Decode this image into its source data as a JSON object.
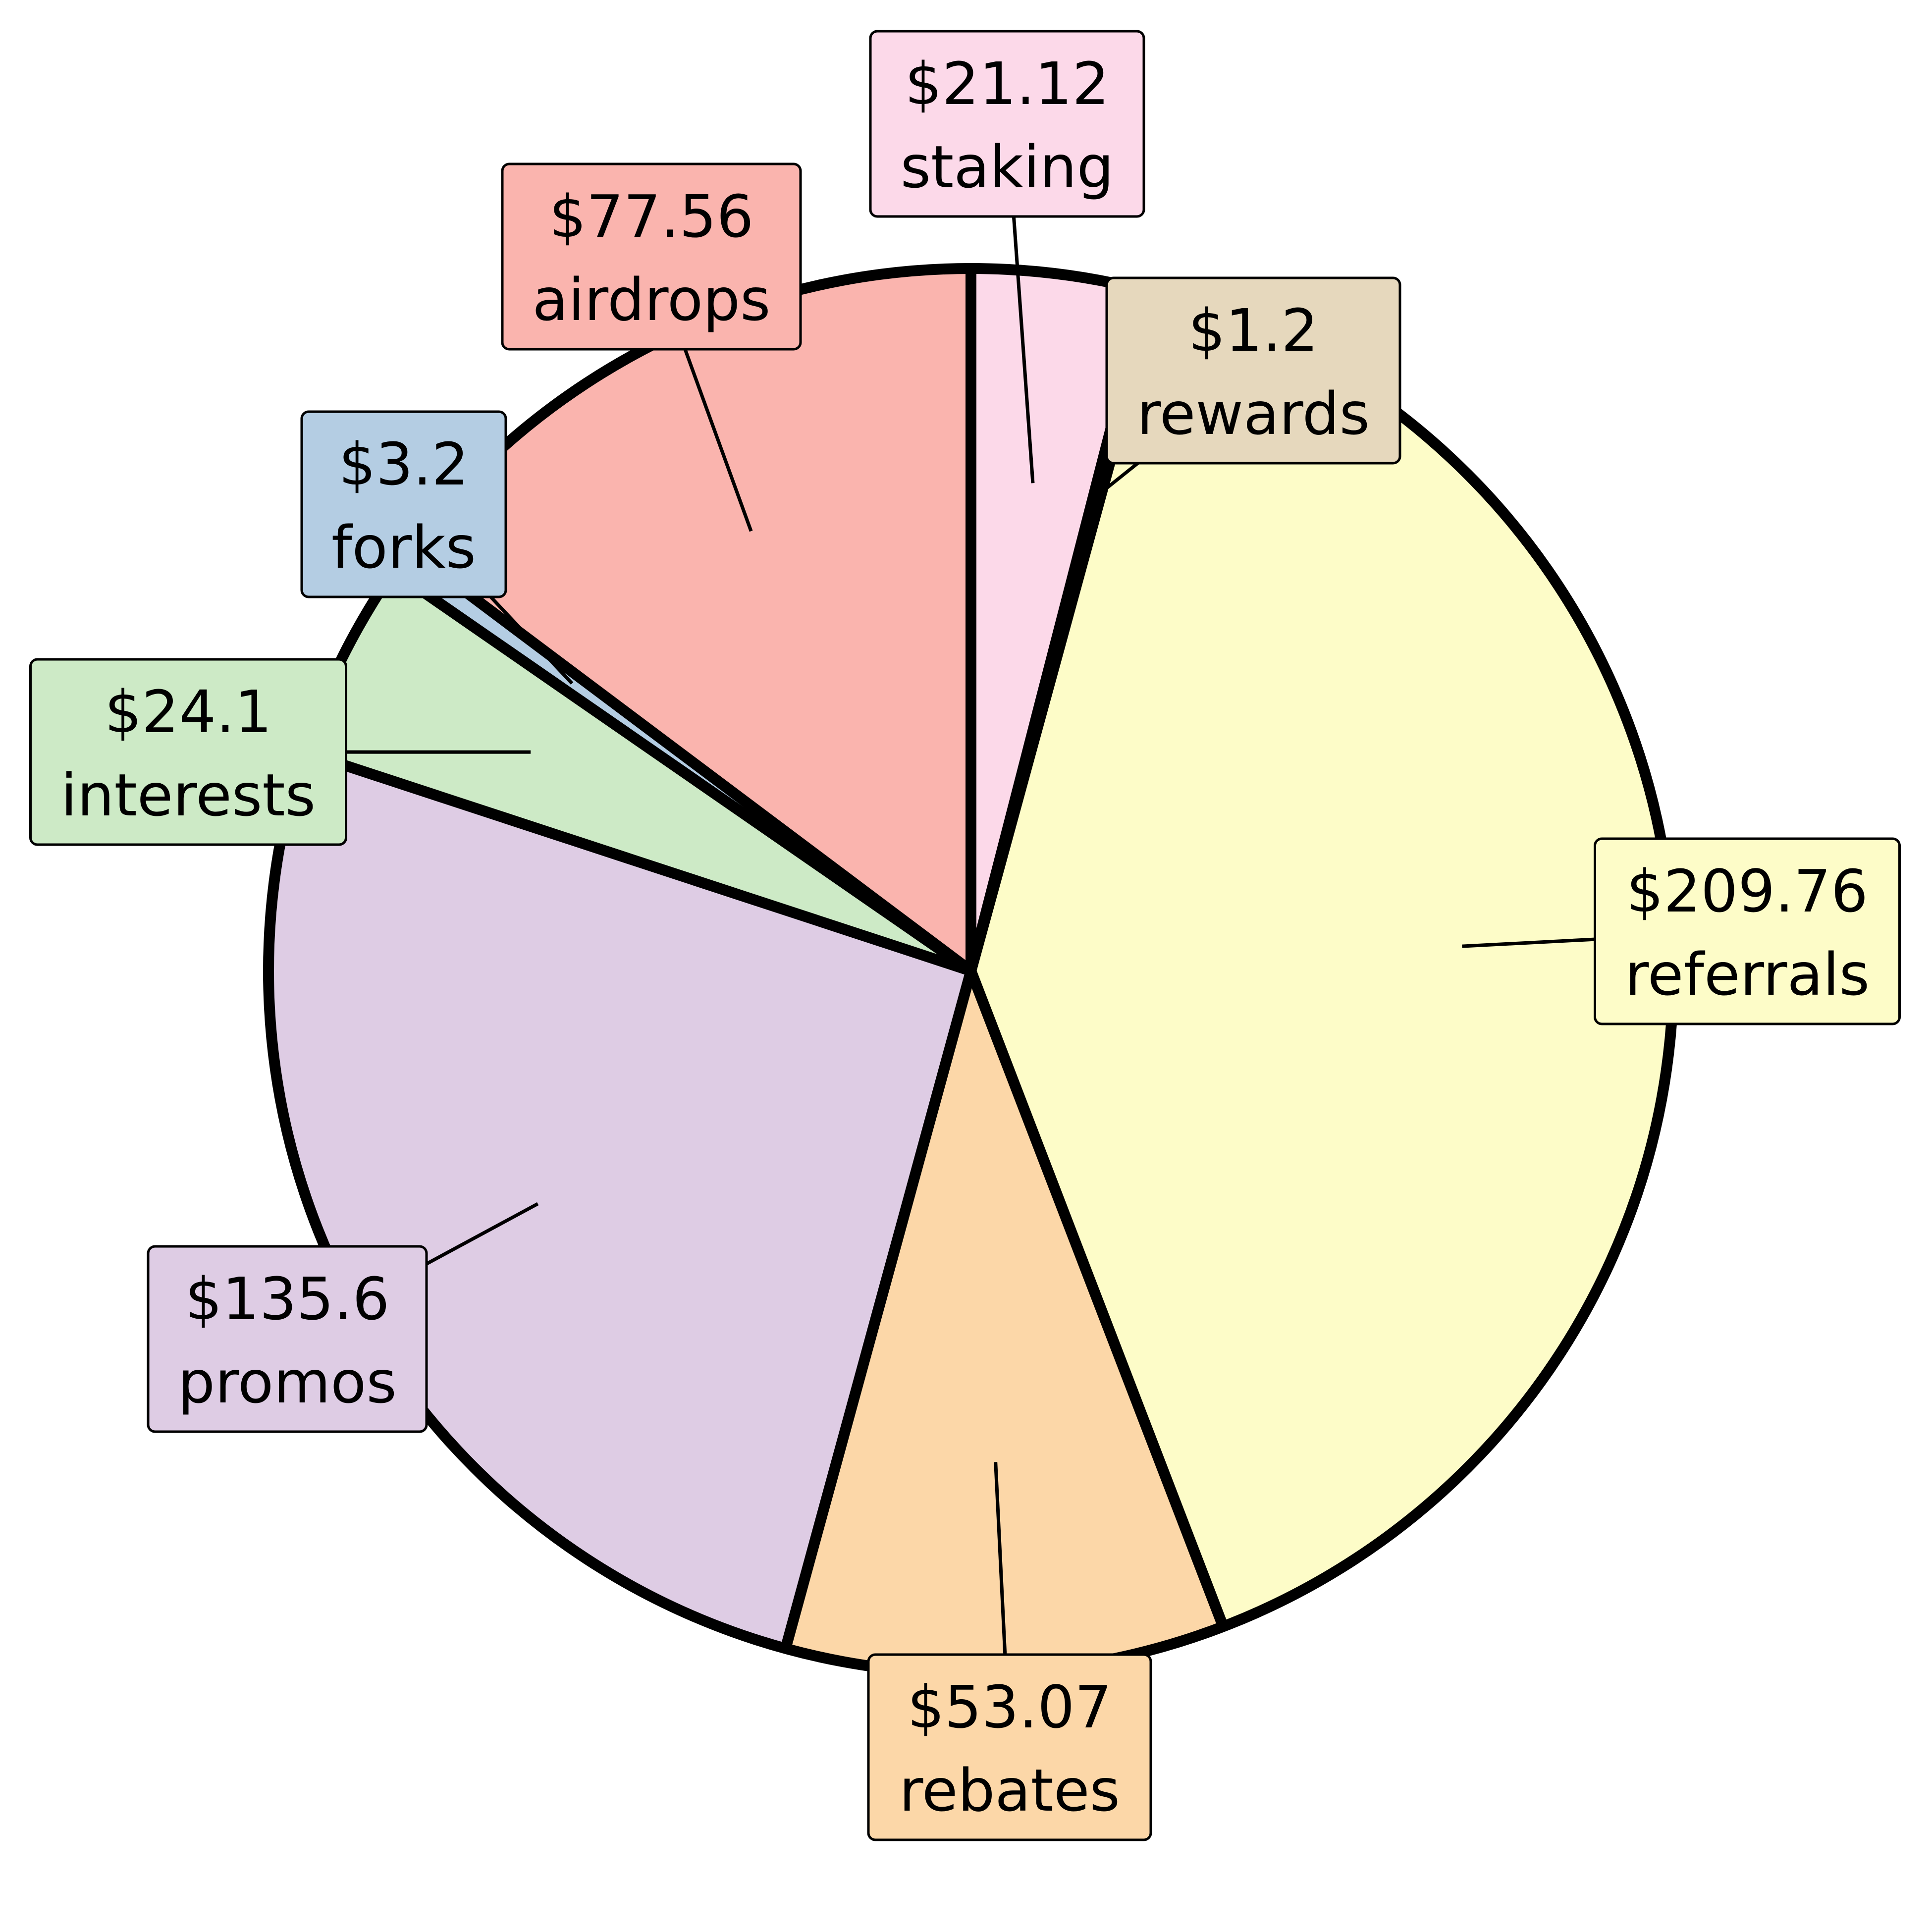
{
  "chart_data": {
    "type": "pie",
    "title": "",
    "start": "top",
    "direction": "clockwise",
    "legend": "none",
    "slices": [
      {
        "label": "staking",
        "value": 21.12,
        "display": "$21.12",
        "color": "#fcd9e9"
      },
      {
        "label": "rewards",
        "value": 1.2,
        "display": "$1.2",
        "color": "#e6d8bd"
      },
      {
        "label": "referrals",
        "value": 209.76,
        "display": "$209.76",
        "color": "#fdfcc8"
      },
      {
        "label": "rebates",
        "value": 53.07,
        "display": "$53.07",
        "color": "#fcd7a8"
      },
      {
        "label": "promos",
        "value": 135.6,
        "display": "$135.6",
        "color": "#decce4"
      },
      {
        "label": "interests",
        "value": 24.1,
        "display": "$24.1",
        "color": "#cdeac6"
      },
      {
        "label": "forks",
        "value": 3.2,
        "display": "$3.2",
        "color": "#b4cde3"
      },
      {
        "label": "airdrops",
        "value": 77.56,
        "display": "$77.56",
        "color": "#fab4ae"
      }
    ]
  }
}
